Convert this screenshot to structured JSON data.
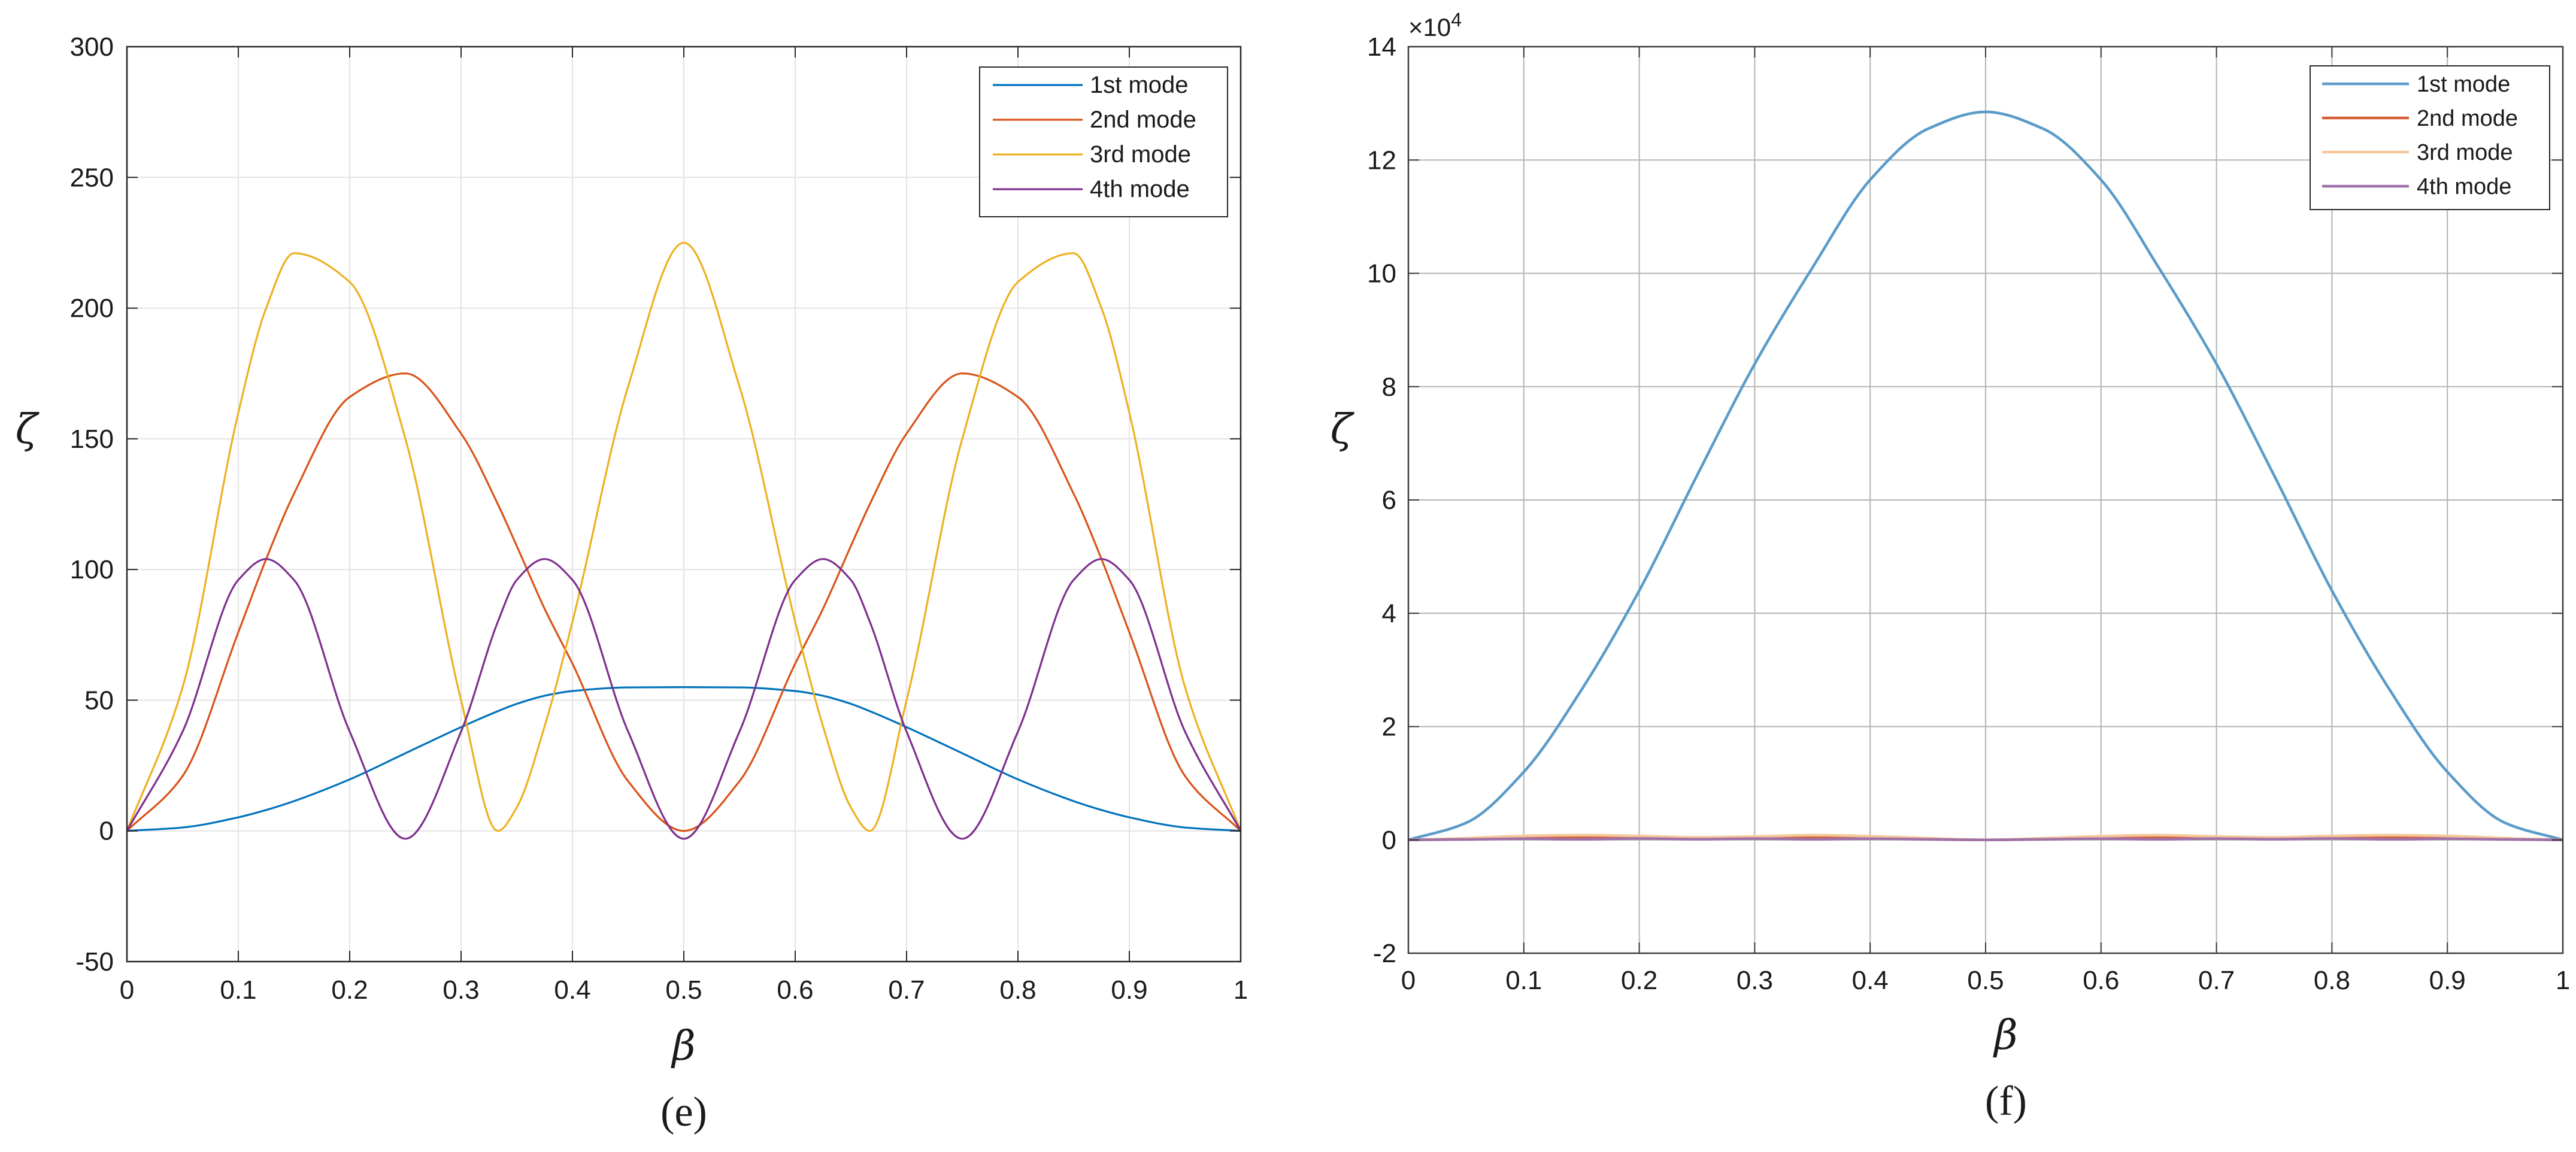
{
  "chart_data": [
    {
      "type": "line",
      "caption": "(e)",
      "xlabel": "β",
      "ylabel": "ζ",
      "xlim": [
        0,
        1
      ],
      "ylim": [
        -50,
        300
      ],
      "x_ticks": [
        0,
        0.1,
        0.2,
        0.3,
        0.4,
        0.5,
        0.6,
        0.7,
        0.8,
        0.9,
        1
      ],
      "x_tick_labels": [
        "0",
        "0.1",
        "0.2",
        "0.3",
        "0.4",
        "0.5",
        "0.6",
        "0.7",
        "0.8",
        "0.9",
        "1"
      ],
      "y_ticks": [
        -50,
        0,
        50,
        100,
        150,
        200,
        250,
        300
      ],
      "y_tick_labels": [
        "-50",
        "0",
        "50",
        "100",
        "150",
        "200",
        "250",
        "300"
      ],
      "grid": true,
      "legend_position": "top-right",
      "x": [
        0,
        0.05,
        0.1,
        0.125,
        0.15,
        0.2,
        0.25,
        0.3,
        0.333,
        0.35,
        0.375,
        0.4,
        0.45,
        0.5,
        0.55,
        0.6,
        0.625,
        0.65,
        0.667,
        0.7,
        0.75,
        0.8,
        0.85,
        0.875,
        0.9,
        0.95,
        1
      ],
      "series": [
        {
          "name": "1st mode",
          "color": "#0072BD",
          "values": [
            0,
            1.3,
            5.2,
            8.0,
            11.4,
            19.7,
            29.7,
            39.7,
            45.8,
            48.6,
            51.7,
            53.5,
            54.9,
            55.0,
            54.9,
            53.5,
            51.7,
            48.6,
            45.8,
            39.7,
            29.7,
            19.7,
            11.4,
            8.0,
            5.2,
            1.3,
            0
          ]
        },
        {
          "name": "2nd mode",
          "color": "#D95319",
          "values": [
            0,
            21,
            76,
            104,
            129,
            166,
            175,
            152,
            125,
            109,
            85,
            64,
            19,
            0,
            19,
            64,
            85,
            109,
            125,
            152,
            175,
            166,
            129,
            104,
            76,
            21,
            0
          ]
        },
        {
          "name": "3rd mode",
          "color": "#EDB120",
          "values": [
            0,
            55,
            160,
            200,
            221,
            210,
            150,
            50,
            0,
            9,
            40,
            80,
            170,
            225,
            170,
            80,
            40,
            9,
            0,
            50,
            150,
            210,
            221,
            200,
            160,
            55,
            0
          ]
        },
        {
          "name": "4th mode",
          "color": "#7E2F8E",
          "values": [
            0,
            38,
            96,
            104,
            96,
            38,
            -3,
            38,
            80,
            96,
            104,
            96,
            38,
            -3,
            38,
            96,
            104,
            96,
            80,
            38,
            -3,
            38,
            96,
            104,
            96,
            38,
            0
          ]
        }
      ]
    },
    {
      "type": "line",
      "caption": "(f)",
      "xlabel": "β",
      "ylabel": "ζ",
      "xlim": [
        0,
        1
      ],
      "ylim": [
        -20000,
        140000
      ],
      "y_exponent_label": "×10",
      "y_exponent_power": "4",
      "x_ticks": [
        0,
        0.1,
        0.2,
        0.3,
        0.4,
        0.5,
        0.6,
        0.7,
        0.8,
        0.9,
        1
      ],
      "x_tick_labels": [
        "0",
        "0.1",
        "0.2",
        "0.3",
        "0.4",
        "0.5",
        "0.6",
        "0.7",
        "0.8",
        "0.9",
        "1"
      ],
      "y_ticks": [
        -20000,
        0,
        20000,
        40000,
        60000,
        80000,
        100000,
        120000,
        140000
      ],
      "y_tick_labels": [
        "-2",
        "0",
        "2",
        "4",
        "6",
        "8",
        "10",
        "12",
        "14"
      ],
      "grid": true,
      "legend_position": "top-right",
      "x": [
        0,
        0.05,
        0.1,
        0.15,
        0.2,
        0.25,
        0.3,
        0.35,
        0.4,
        0.45,
        0.5,
        0.55,
        0.6,
        0.65,
        0.7,
        0.75,
        0.8,
        0.85,
        0.9,
        0.95,
        1
      ],
      "series": [
        {
          "name": "1st mode",
          "color": "#5B9BC8",
          "values": [
            0,
            3000,
            12000,
            26500,
            44000,
            64300,
            84000,
            101000,
            116500,
            125500,
            128500,
            125500,
            116500,
            101000,
            84000,
            64300,
            44000,
            26500,
            12000,
            3000,
            0
          ]
        },
        {
          "name": "2nd mode",
          "color": "#D6603A",
          "values": [
            0,
            150,
            400,
            550,
            500,
            300,
            400,
            550,
            400,
            150,
            0,
            150,
            400,
            550,
            400,
            300,
            500,
            550,
            400,
            150,
            0
          ]
        },
        {
          "name": "3rd mode",
          "color": "#F5C89A",
          "values": [
            0,
            300,
            700,
            850,
            700,
            450,
            600,
            850,
            650,
            300,
            0,
            300,
            650,
            850,
            600,
            450,
            700,
            850,
            700,
            300,
            0
          ]
        },
        {
          "name": "4th mode",
          "color": "#A070A8",
          "values": [
            0,
            80,
            200,
            100,
            250,
            120,
            230,
            100,
            210,
            90,
            0,
            90,
            210,
            100,
            230,
            120,
            250,
            100,
            200,
            80,
            0
          ]
        }
      ]
    }
  ]
}
